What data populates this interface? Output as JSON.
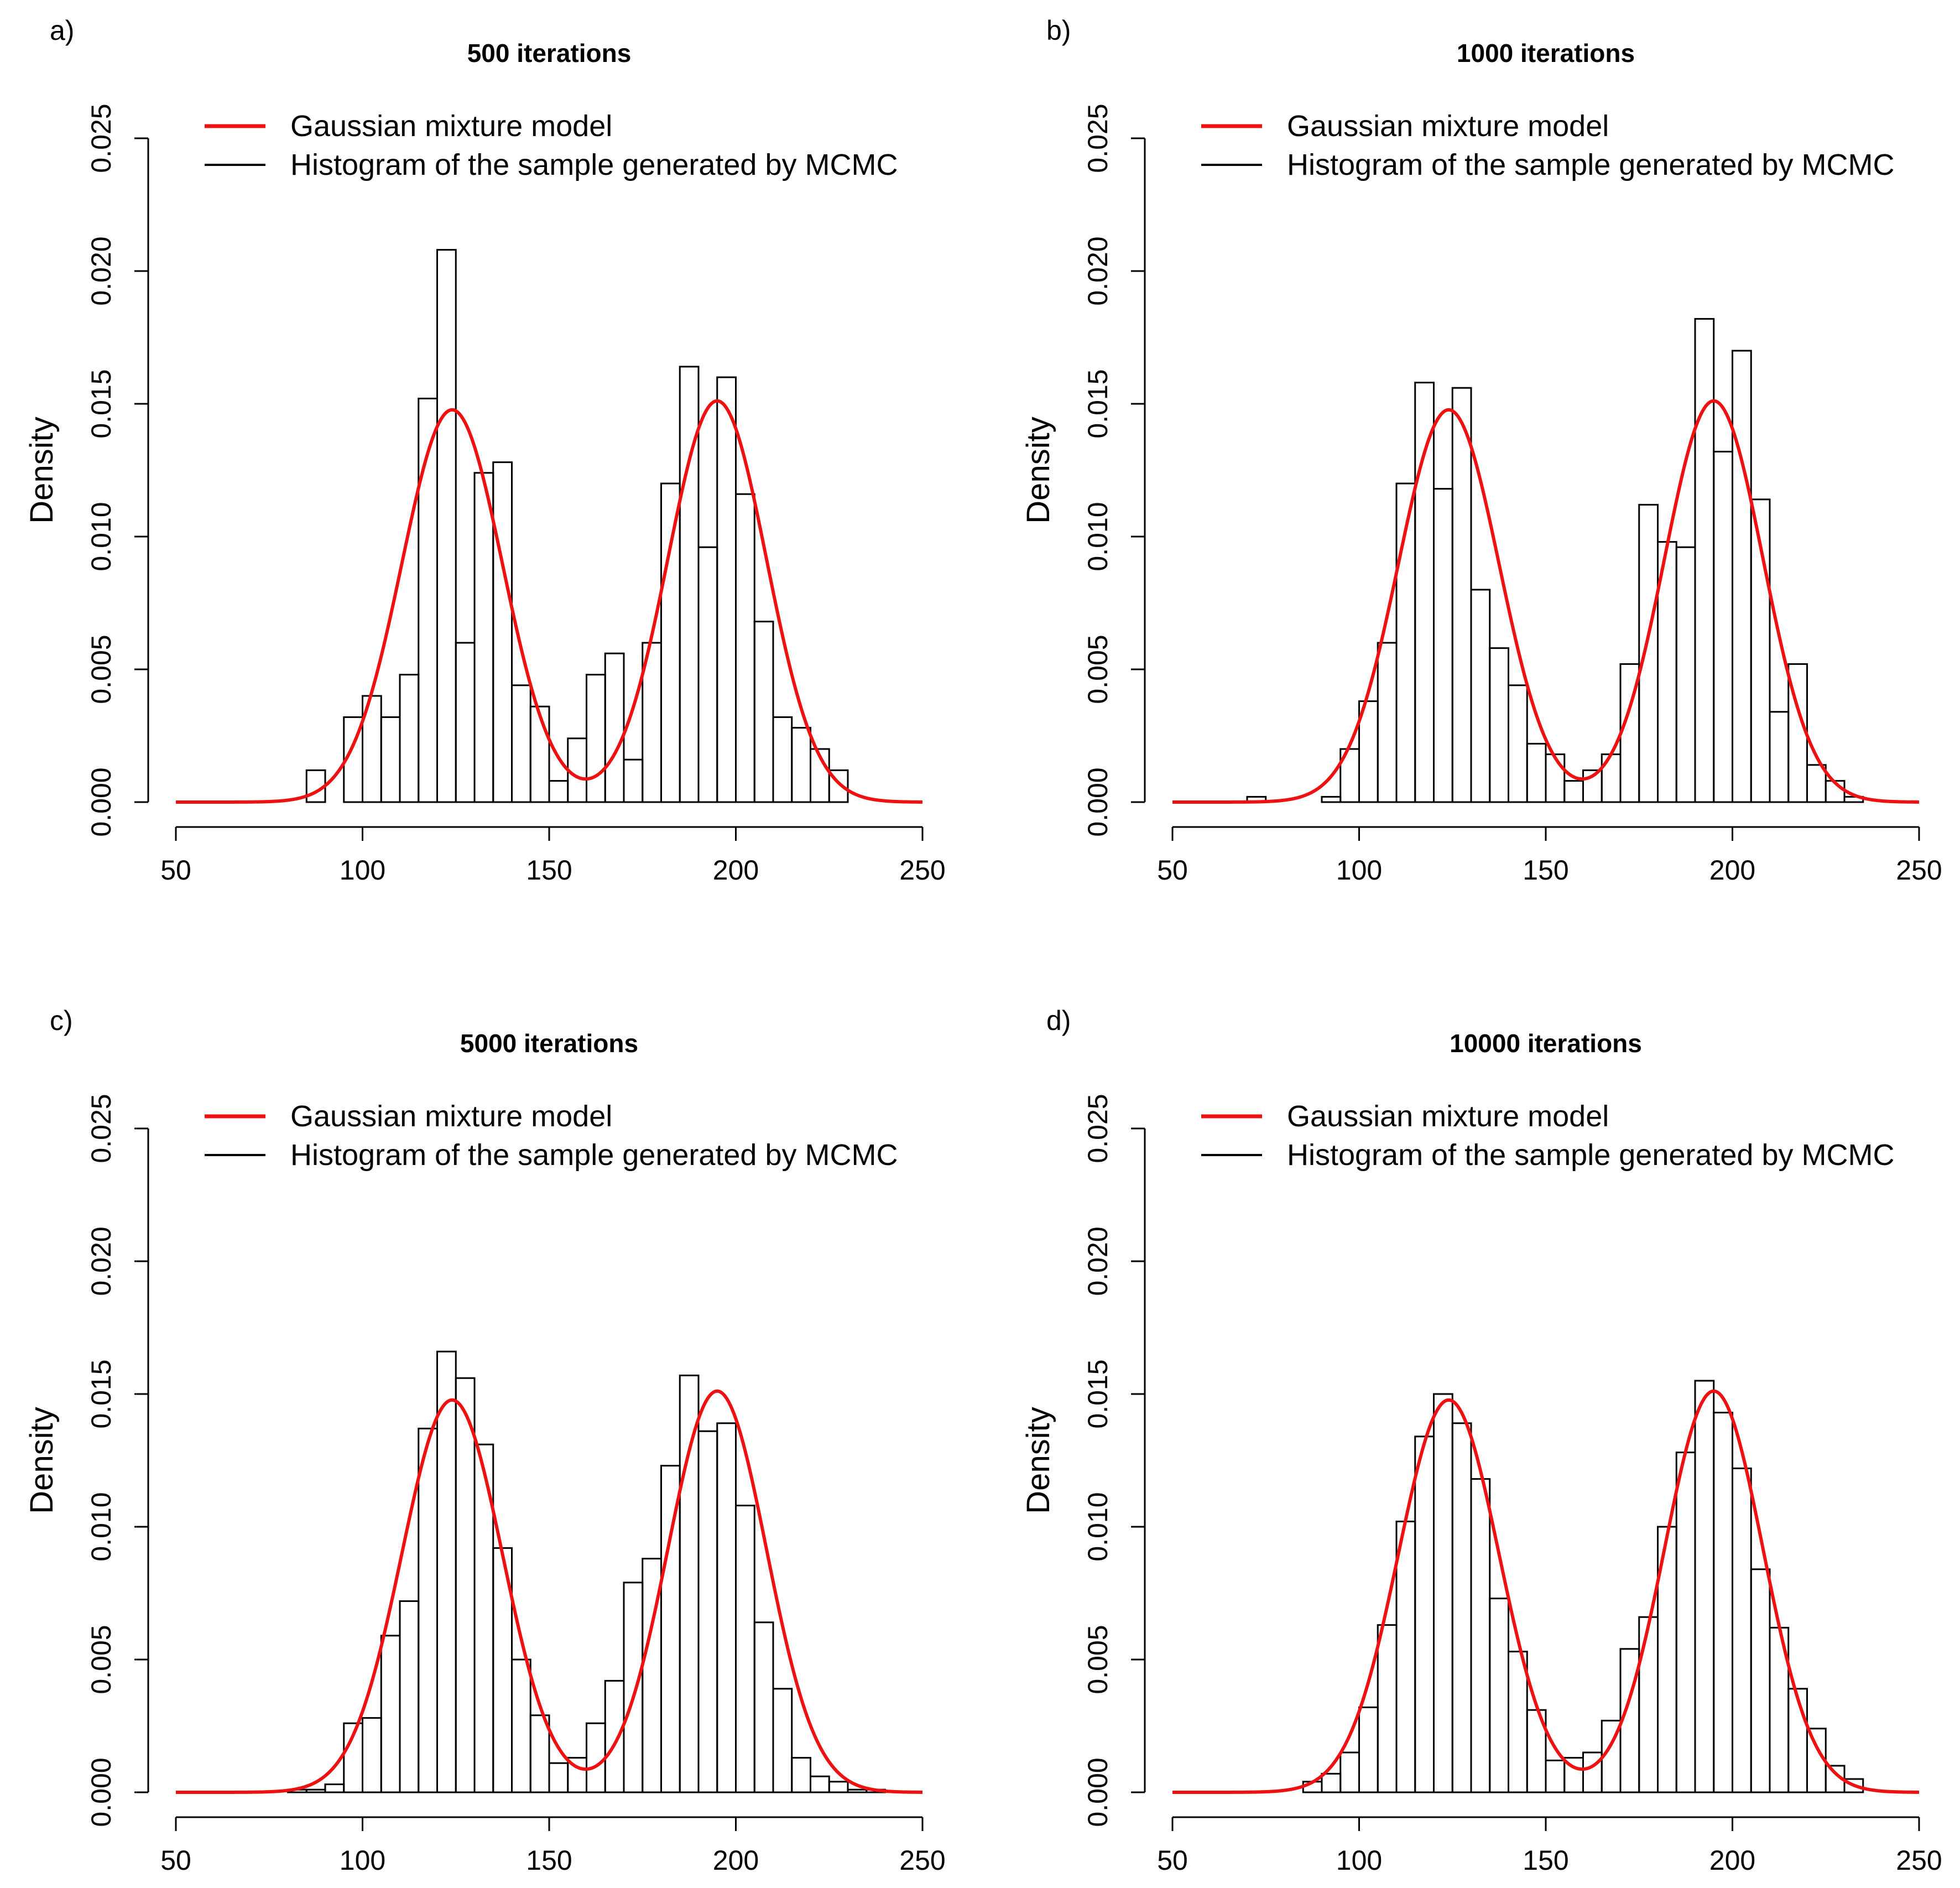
{
  "chart_data": [
    {
      "panel_label": "a)",
      "type": "bar",
      "title": "500 iterations",
      "xlabel": "",
      "ylabel": "Density",
      "xlim": [
        50,
        250
      ],
      "ylim": [
        0,
        0.025
      ],
      "x_ticks": [
        "50",
        "100",
        "150",
        "200",
        "250"
      ],
      "y_ticks": [
        "0.000",
        "0.005",
        "0.010",
        "0.015",
        "0.020",
        "0.025"
      ],
      "legend": {
        "position": "top",
        "entries": [
          {
            "label": "Gaussian mixture model",
            "color": "#ee1111"
          },
          {
            "label": "Histogram of the sample generated by MCMC",
            "color": "#000000"
          }
        ]
      },
      "bin_start": 85,
      "bin_width": 5,
      "histogram": [
        0.0012,
        0.0,
        0.0032,
        0.004,
        0.0032,
        0.0048,
        0.0152,
        0.0208,
        0.006,
        0.0124,
        0.0128,
        0.0044,
        0.0036,
        0.0008,
        0.0024,
        0.0048,
        0.0056,
        0.0016,
        0.006,
        0.012,
        0.0164,
        0.0096,
        0.016,
        0.0116,
        0.0068,
        0.0032,
        0.0028,
        0.002,
        0.0012
      ],
      "mixture": {
        "components": [
          {
            "weight": 0.5,
            "mean": 124,
            "sd": 13.5
          },
          {
            "weight": 0.5,
            "mean": 195,
            "sd": 13.2
          }
        ]
      }
    },
    {
      "panel_label": "b)",
      "type": "bar",
      "title": "1000 iterations",
      "xlabel": "",
      "ylabel": "Density",
      "xlim": [
        50,
        250
      ],
      "ylim": [
        0,
        0.025
      ],
      "x_ticks": [
        "50",
        "100",
        "150",
        "200",
        "250"
      ],
      "y_ticks": [
        "0.000",
        "0.005",
        "0.010",
        "0.015",
        "0.020",
        "0.025"
      ],
      "legend": {
        "position": "top",
        "entries": [
          {
            "label": "Gaussian mixture model",
            "color": "#ee1111"
          },
          {
            "label": "Histogram of the sample generated by MCMC",
            "color": "#000000"
          }
        ]
      },
      "bin_start": 70,
      "bin_width": 5,
      "histogram": [
        0.0002,
        0.0,
        0.0,
        0.0,
        0.0002,
        0.002,
        0.0038,
        0.006,
        0.012,
        0.0158,
        0.0118,
        0.0156,
        0.008,
        0.0058,
        0.0044,
        0.0022,
        0.0018,
        0.0008,
        0.0012,
        0.0018,
        0.0052,
        0.0112,
        0.0098,
        0.0096,
        0.0182,
        0.0132,
        0.017,
        0.0114,
        0.0034,
        0.0052,
        0.0014,
        0.0008,
        0.0002
      ],
      "mixture": {
        "components": [
          {
            "weight": 0.5,
            "mean": 124,
            "sd": 13.5
          },
          {
            "weight": 0.5,
            "mean": 195,
            "sd": 13.2
          }
        ]
      }
    },
    {
      "panel_label": "c)",
      "type": "bar",
      "title": "5000 iterations",
      "xlabel": "",
      "ylabel": "Density",
      "xlim": [
        50,
        250
      ],
      "ylim": [
        0,
        0.025
      ],
      "x_ticks": [
        "50",
        "100",
        "150",
        "200",
        "250"
      ],
      "y_ticks": [
        "0.000",
        "0.005",
        "0.010",
        "0.015",
        "0.020",
        "0.025"
      ],
      "legend": {
        "position": "top",
        "entries": [
          {
            "label": "Gaussian mixture model",
            "color": "#ee1111"
          },
          {
            "label": "Histogram of the sample generated by MCMC",
            "color": "#000000"
          }
        ]
      },
      "bin_start": 80,
      "bin_width": 5,
      "histogram": [
        0.0001,
        0.0001,
        0.0003,
        0.0026,
        0.0028,
        0.0059,
        0.0072,
        0.0137,
        0.0166,
        0.0156,
        0.0131,
        0.0092,
        0.005,
        0.0029,
        0.0011,
        0.0013,
        0.0026,
        0.0042,
        0.0079,
        0.0088,
        0.0123,
        0.0157,
        0.0136,
        0.0139,
        0.0108,
        0.0064,
        0.0039,
        0.0013,
        0.0006,
        0.0004,
        0.0001,
        0.0001,
        0.0
      ],
      "mixture": {
        "components": [
          {
            "weight": 0.5,
            "mean": 124,
            "sd": 13.5
          },
          {
            "weight": 0.5,
            "mean": 195,
            "sd": 13.2
          }
        ]
      }
    },
    {
      "panel_label": "d)",
      "type": "bar",
      "title": "10000 iterations",
      "xlabel": "",
      "ylabel": "Density",
      "xlim": [
        50,
        250
      ],
      "ylim": [
        0,
        0.025
      ],
      "x_ticks": [
        "50",
        "100",
        "150",
        "200",
        "250"
      ],
      "y_ticks": [
        "0.000",
        "0.005",
        "0.010",
        "0.015",
        "0.020",
        "0.025"
      ],
      "legend": {
        "position": "top",
        "entries": [
          {
            "label": "Gaussian mixture model",
            "color": "#ee1111"
          },
          {
            "label": "Histogram of the sample generated by MCMC",
            "color": "#000000"
          }
        ]
      },
      "bin_start": 85,
      "bin_width": 5,
      "histogram": [
        0.0004,
        0.0007,
        0.0015,
        0.0032,
        0.0063,
        0.0102,
        0.0134,
        0.015,
        0.0139,
        0.0118,
        0.0073,
        0.0053,
        0.0031,
        0.0012,
        0.0013,
        0.0015,
        0.0027,
        0.0054,
        0.0066,
        0.01,
        0.0128,
        0.0155,
        0.0143,
        0.0122,
        0.0084,
        0.0062,
        0.0039,
        0.0024,
        0.001,
        0.0005
      ],
      "mixture": {
        "components": [
          {
            "weight": 0.5,
            "mean": 124,
            "sd": 13.5
          },
          {
            "weight": 0.5,
            "mean": 195,
            "sd": 13.2
          }
        ]
      }
    }
  ]
}
